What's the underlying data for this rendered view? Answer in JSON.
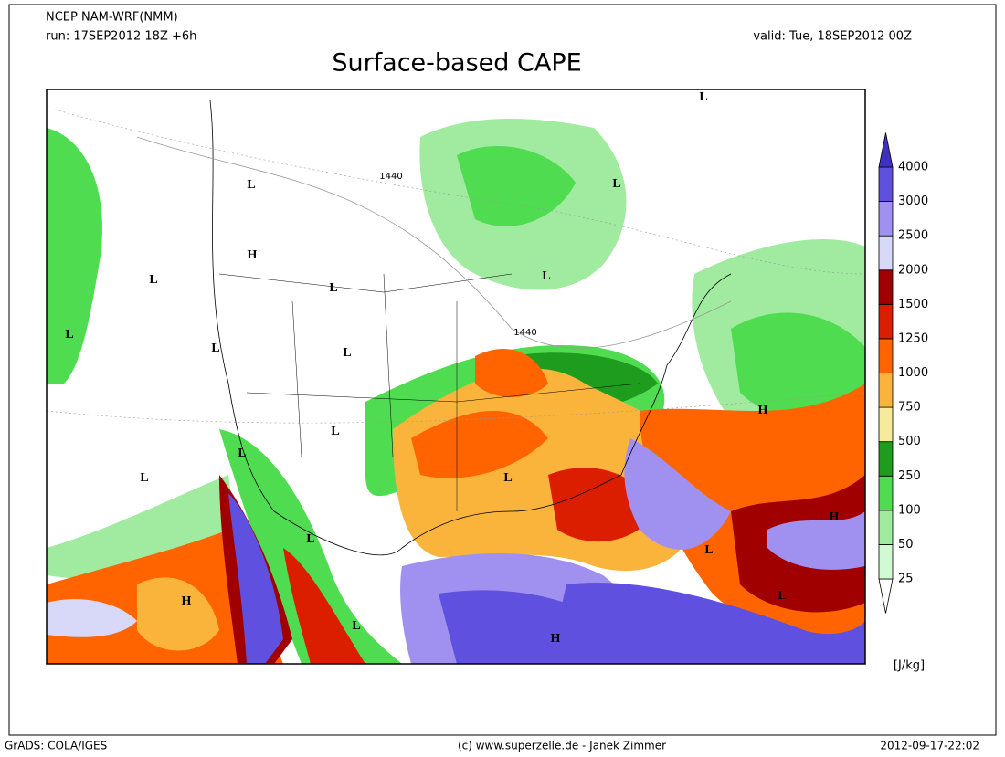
{
  "header": {
    "model": "NCEP NAM-WRF(NMM)",
    "run": "run: 17SEP2012 18Z +6h",
    "valid": "valid: Tue, 18SEP2012 00Z",
    "title": "Surface-based CAPE"
  },
  "map": {
    "contour_labels": [
      "1440",
      "1440"
    ],
    "markers": [
      "L",
      "L",
      "L",
      "H",
      "L",
      "L",
      "L",
      "L",
      "L",
      "L",
      "H",
      "L",
      "L",
      "L",
      "L",
      "H",
      "L",
      "L",
      "H",
      "L",
      "L",
      "H"
    ]
  },
  "colorbar": {
    "levels": [
      "25",
      "50",
      "100",
      "250",
      "500",
      "750",
      "1000",
      "1250",
      "1500",
      "2000",
      "2500",
      "3000",
      "4000"
    ],
    "colors": [
      "#ffffff",
      "#d2fad2",
      "#a0eba0",
      "#50dc50",
      "#1e9c1e",
      "#f5eb9b",
      "#fab43c",
      "#ff6400",
      "#dc1e00",
      "#a00000",
      "#d8d8f8",
      "#a090f0",
      "#6050e0",
      "#4030c0"
    ],
    "unit": "[J/kg]"
  },
  "footer": {
    "left": "GrADS: COLA/IGES",
    "center": "(c) www.superzelle.de - Janek Zimmer",
    "right": "2012-09-17-22:02"
  }
}
